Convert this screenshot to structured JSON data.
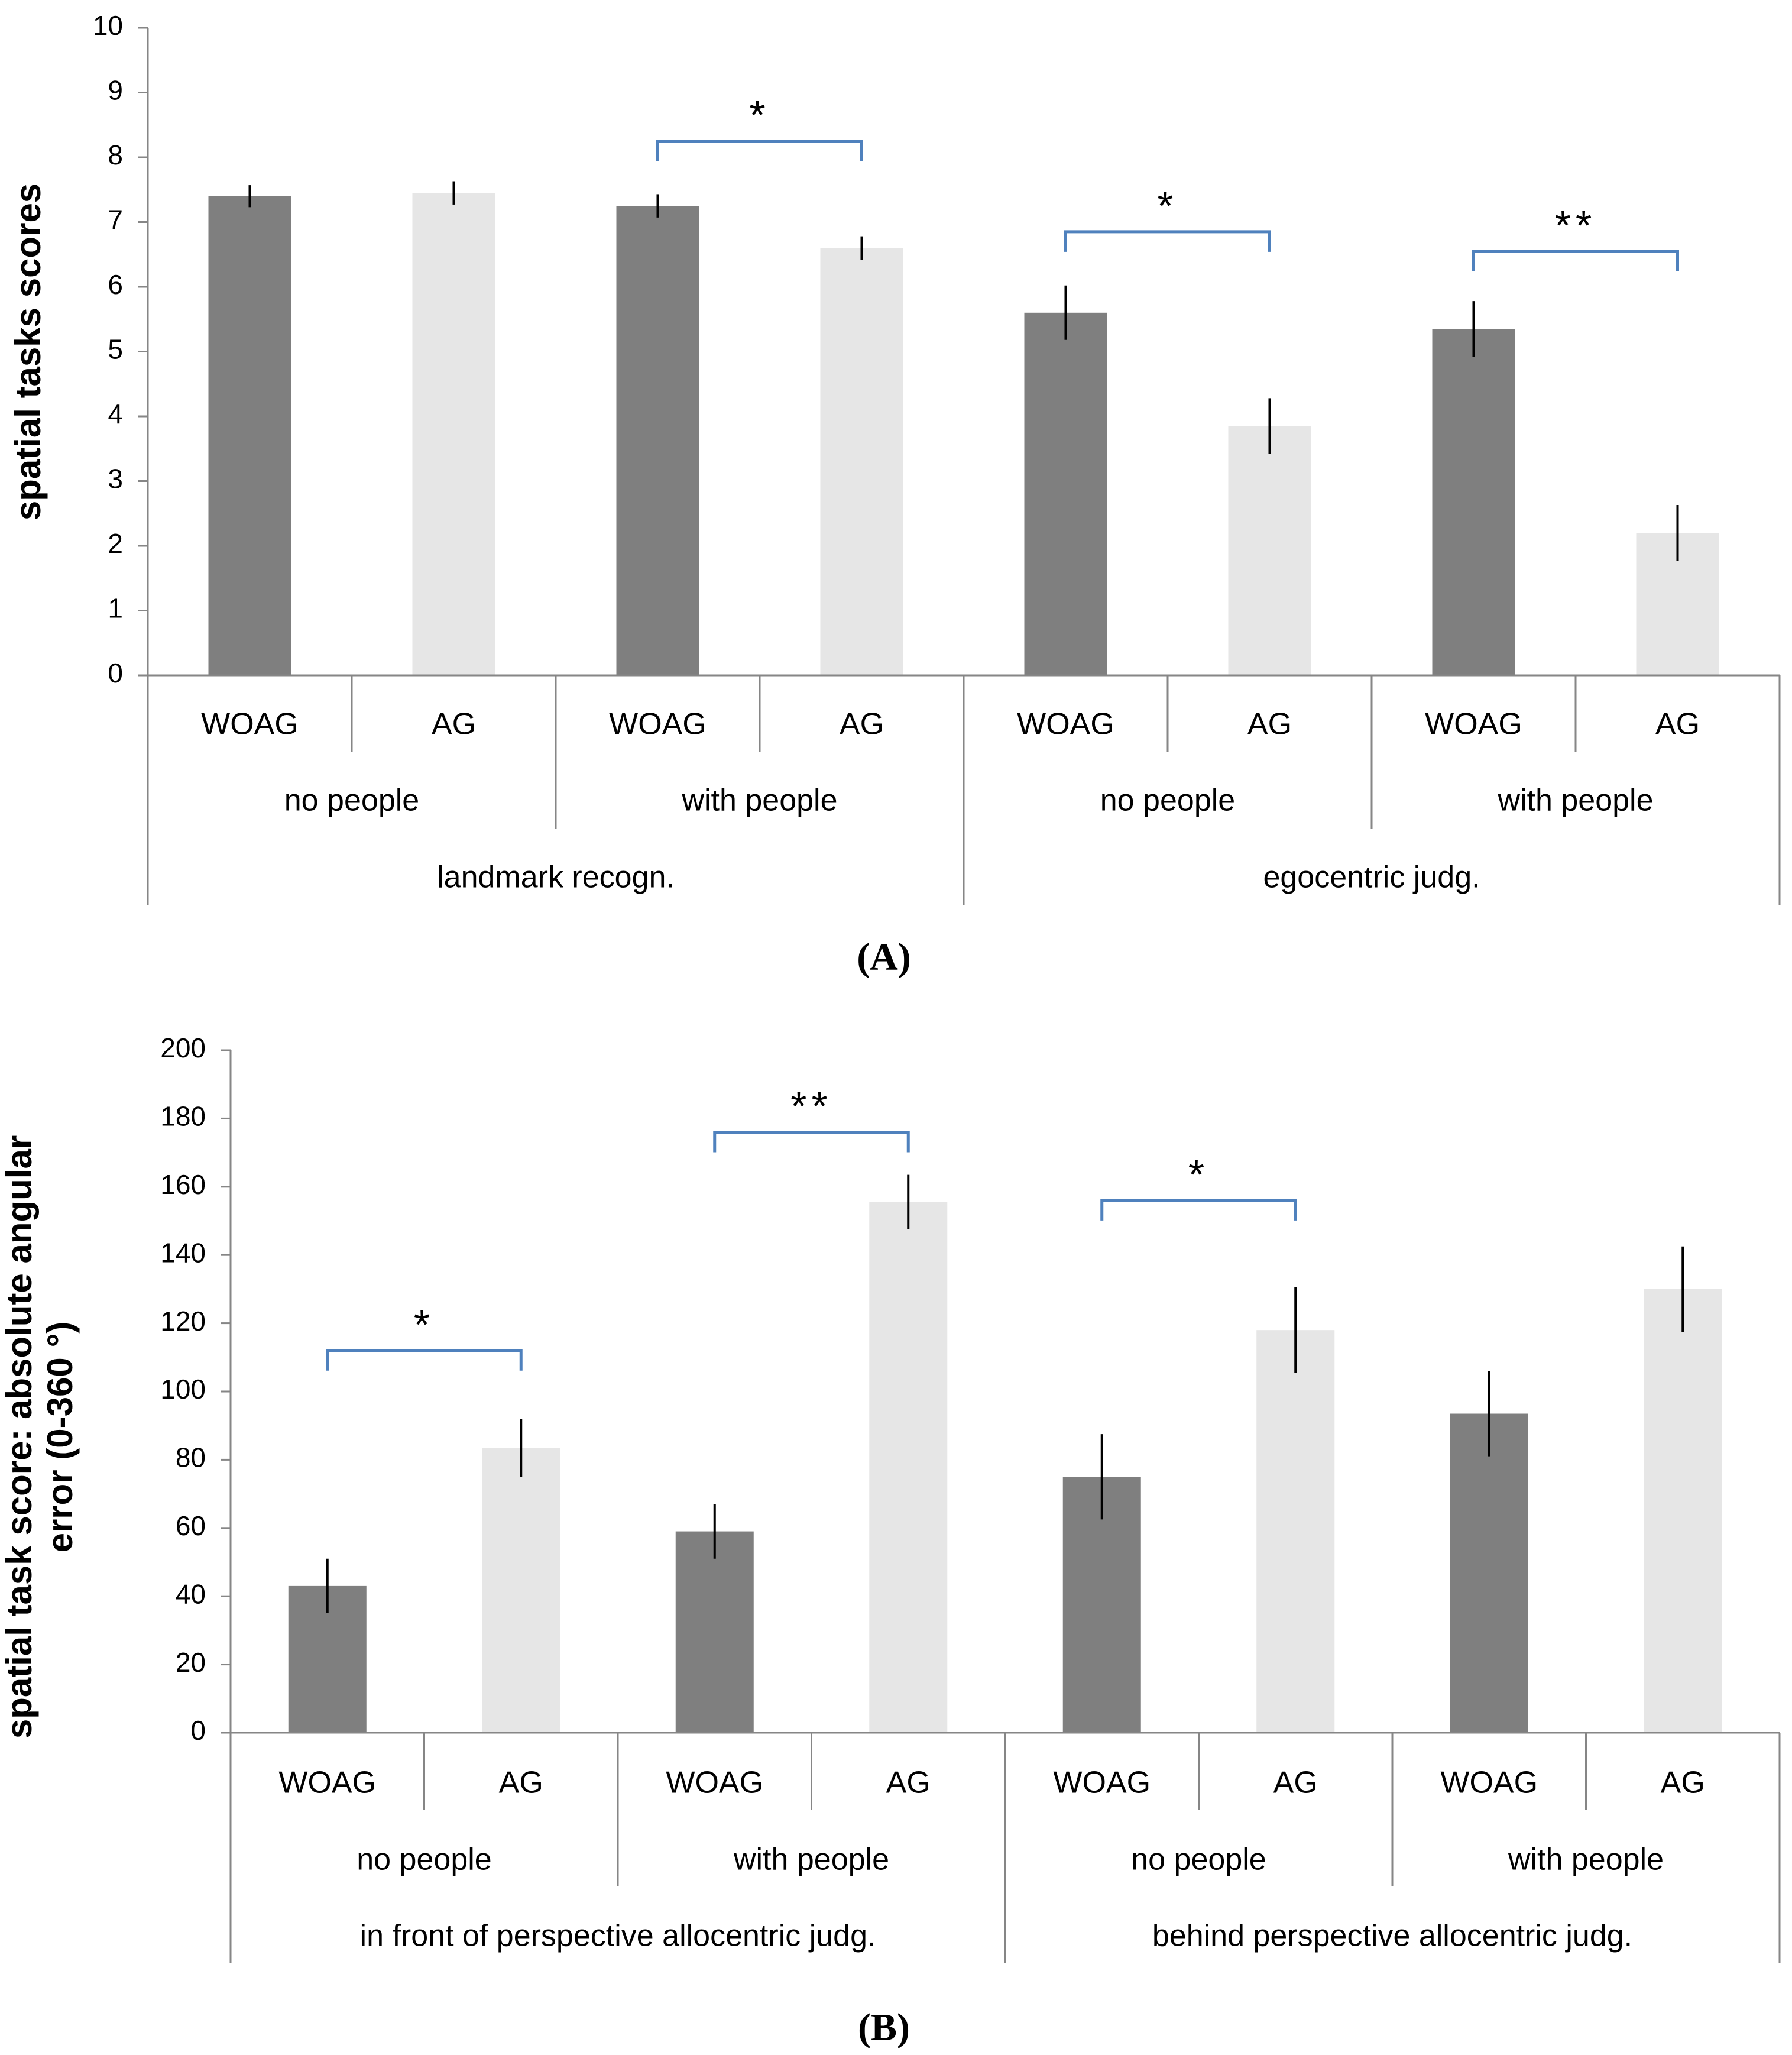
{
  "chart_data": [
    {
      "type": "bar",
      "panel_label": "(A)",
      "ylabel": "spatial tasks scores",
      "ylim": [
        0,
        10
      ],
      "yticks": [
        0,
        1,
        2,
        3,
        4,
        5,
        6,
        7,
        8,
        9,
        10
      ],
      "level1": [
        "WOAG",
        "AG",
        "WOAG",
        "AG",
        "WOAG",
        "AG",
        "WOAG",
        "AG"
      ],
      "level2": [
        "no people",
        "with people",
        "no people",
        "with people"
      ],
      "level3": [
        "landmark recogn.",
        "egocentric judg."
      ],
      "groups": [
        "WOAG",
        "AG",
        "WOAG",
        "AG",
        "WOAG",
        "AG",
        "WOAG",
        "AG"
      ],
      "values": [
        7.4,
        7.45,
        7.25,
        6.6,
        5.6,
        3.85,
        5.35,
        2.2
      ],
      "errors": [
        0.17,
        0.18,
        0.18,
        0.18,
        0.42,
        0.43,
        0.43,
        0.43
      ],
      "significance": [
        {
          "from": 2,
          "to": 3,
          "level": 8.25,
          "label": "*"
        },
        {
          "from": 4,
          "to": 5,
          "level": 6.85,
          "label": "*"
        },
        {
          "from": 6,
          "to": 7,
          "level": 6.55,
          "label": "**"
        }
      ],
      "colors": {
        "WOAG": "#7f7f7f",
        "AG": "#e6e6e6",
        "bracket": "#4f81bd"
      }
    },
    {
      "type": "bar",
      "panel_label": "(B)",
      "ylabel": "spatial task score: absolute angular error (0-360 °)",
      "ylim": [
        0,
        200
      ],
      "yticks": [
        0,
        20,
        40,
        60,
        80,
        100,
        120,
        140,
        160,
        180,
        200
      ],
      "level1": [
        "WOAG",
        "AG",
        "WOAG",
        "AG",
        "WOAG",
        "AG",
        "WOAG",
        "AG"
      ],
      "level2": [
        "no people",
        "with people",
        "no people",
        "with people"
      ],
      "level3": [
        "in front of perspective allocentric judg.",
        "behind perspective allocentric judg."
      ],
      "groups": [
        "WOAG",
        "AG",
        "WOAG",
        "AG",
        "WOAG",
        "AG",
        "WOAG",
        "AG"
      ],
      "values": [
        43,
        83.5,
        59,
        155.5,
        75,
        118,
        93.5,
        130
      ],
      "errors": [
        8,
        8.5,
        8,
        8,
        12.5,
        12.5,
        12.5,
        12.5
      ],
      "significance": [
        {
          "from": 0,
          "to": 1,
          "level": 112,
          "label": "*"
        },
        {
          "from": 2,
          "to": 3,
          "level": 176,
          "label": "**"
        },
        {
          "from": 4,
          "to": 5,
          "level": 156,
          "label": "*"
        }
      ],
      "colors": {
        "WOAG": "#7f7f7f",
        "AG": "#e6e6e6",
        "bracket": "#4f81bd"
      }
    }
  ]
}
